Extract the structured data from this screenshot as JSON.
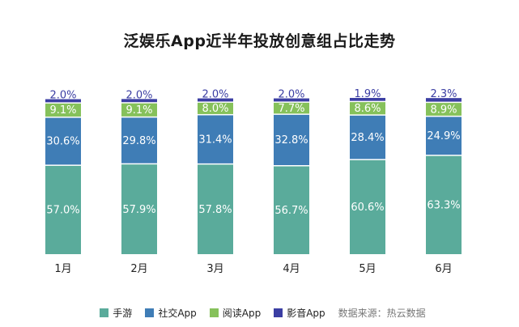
{
  "chart_data": {
    "type": "bar",
    "stacked": true,
    "title": "泛娱乐App近半年投放创意组占比走势",
    "categories": [
      "1月",
      "2月",
      "3月",
      "4月",
      "5月",
      "6月"
    ],
    "series": [
      {
        "name": "手游",
        "color": "#5aab9b",
        "values": [
          57.0,
          57.9,
          57.8,
          56.7,
          60.6,
          63.3
        ],
        "labels": [
          "57.0%",
          "57.9%",
          "57.8%",
          "56.7%",
          "60.6%",
          "63.3%"
        ]
      },
      {
        "name": "社交App",
        "color": "#3f7db6",
        "values": [
          30.6,
          29.8,
          31.4,
          32.8,
          28.4,
          24.9
        ],
        "labels": [
          "30.6%",
          "29.8%",
          "31.4%",
          "32.8%",
          "28.4%",
          "24.9%"
        ]
      },
      {
        "name": "阅读App",
        "color": "#86c15b",
        "values": [
          9.1,
          9.1,
          8.0,
          7.7,
          8.6,
          8.9
        ],
        "labels": [
          "9.1%",
          "9.1%",
          "8.0%",
          "7.7%",
          "8.6%",
          "8.9%"
        ]
      },
      {
        "name": "影音App",
        "color": "#3b3ea3",
        "values": [
          2.0,
          2.0,
          2.0,
          2.0,
          1.9,
          2.3
        ],
        "labels": [
          "2.0%",
          "2.0%",
          "2.0%",
          "2.0%",
          "1.9%",
          "2.3%"
        ]
      }
    ],
    "ylim": [
      0,
      100
    ],
    "grid": false,
    "legend_position": "bottom",
    "source_note": "数据来源：热云数据"
  }
}
